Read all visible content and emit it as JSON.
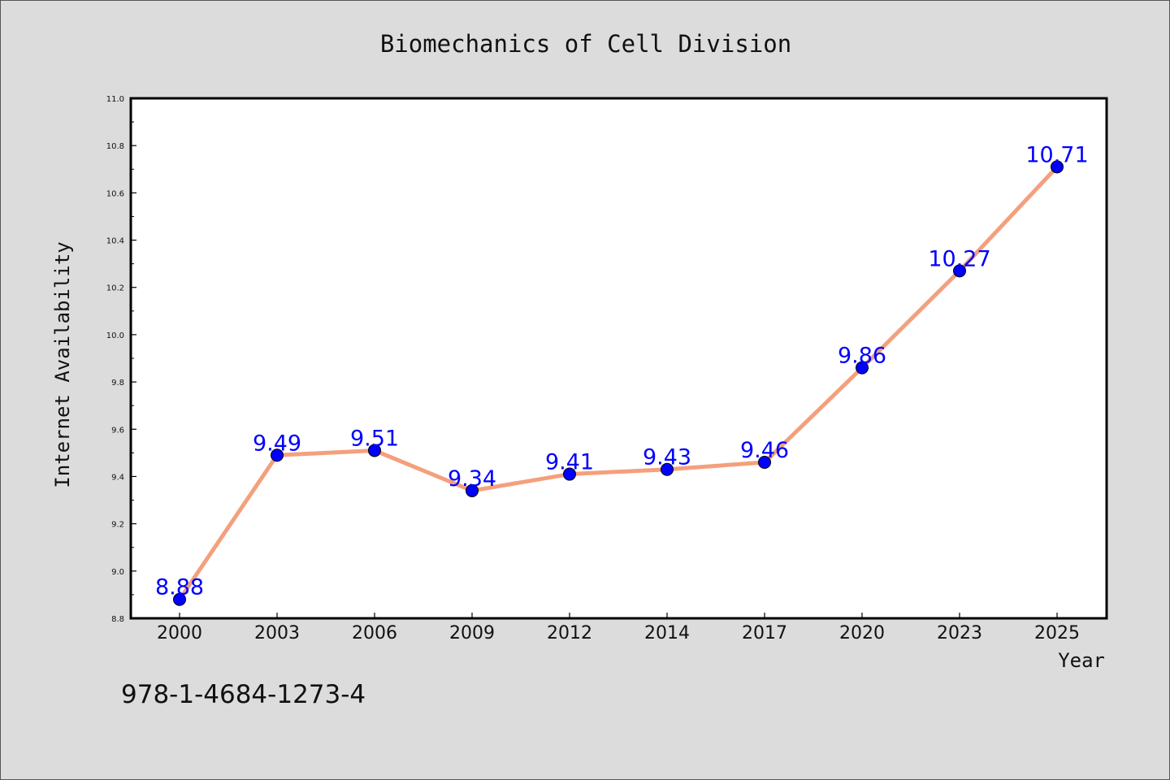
{
  "chart_data": {
    "type": "line",
    "title": "Biomechanics of Cell Division",
    "xlabel": "Year",
    "ylabel": "Internet Availability",
    "categories": [
      "2000",
      "2003",
      "2006",
      "2009",
      "2012",
      "2014",
      "2017",
      "2020",
      "2023",
      "2025"
    ],
    "series": [
      {
        "values": [
          8.88,
          9.49,
          9.51,
          9.34,
          9.41,
          9.43,
          9.46,
          9.86,
          10.27,
          10.71
        ],
        "labels": [
          "8.88",
          "9.49",
          "9.51",
          "9.34",
          "9.41",
          "9.43",
          "9.46",
          "9.86",
          "10.27",
          "10.71"
        ]
      }
    ],
    "ylim": [
      8.8,
      11.0
    ],
    "yticks": [
      "8.8",
      "9.0",
      "9.2",
      "9.4",
      "9.6",
      "9.8",
      "10.0",
      "10.2",
      "10.4",
      "10.6",
      "10.8",
      "11.0"
    ],
    "grid": false,
    "legend": "none",
    "colors": {
      "line": "#f4a07c",
      "marker": "#0000ff",
      "data_label": "#0000ff",
      "background": "#dcdcdc",
      "plot_background": "#ffffff"
    }
  },
  "footnote": "978-1-4684-1273-4"
}
